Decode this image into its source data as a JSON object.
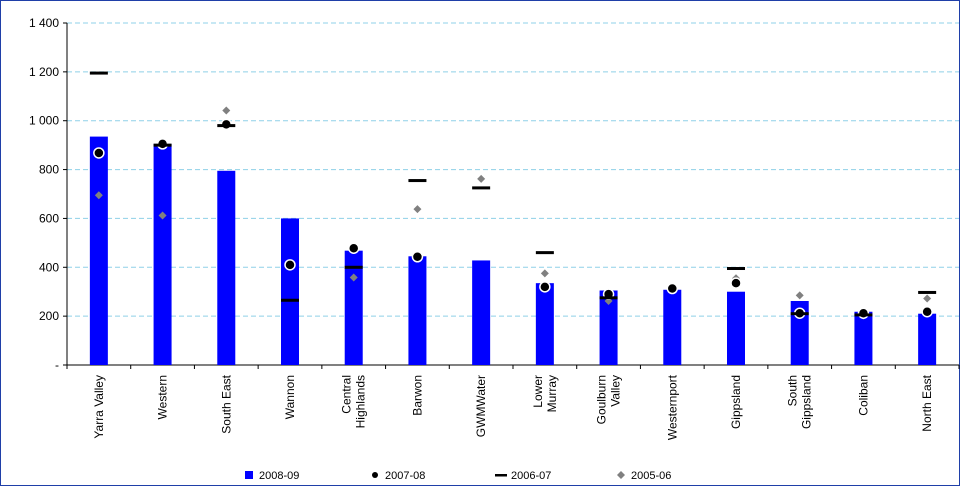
{
  "chart_data": {
    "type": "bar",
    "categories": [
      "Yarra Valley",
      "Western",
      "South East",
      "Wannon",
      "Central Highlands",
      "Barwon",
      "GWMWater",
      "Lower Murray",
      "Goulburn Valley",
      "Westernport",
      "Gippsland",
      "South Gippsland",
      "Coliban",
      "North East"
    ],
    "category_lines": [
      [
        "Yarra Valley"
      ],
      [
        "Western"
      ],
      [
        "South East"
      ],
      [
        "Wannon"
      ],
      [
        "Central",
        "Highlands"
      ],
      [
        "Barwon"
      ],
      [
        "GWMWater"
      ],
      [
        "Lower",
        "Murray"
      ],
      [
        "Goulburn",
        "Valley"
      ],
      [
        "Westernport"
      ],
      [
        "Gippsland"
      ],
      [
        "South",
        "Gippsland"
      ],
      [
        "Coliban"
      ],
      [
        "North East"
      ]
    ],
    "series": [
      {
        "name": "2008-09",
        "style": "bar",
        "color": "#0000ff",
        "values": [
          935,
          905,
          795,
          600,
          468,
          445,
          428,
          335,
          305,
          308,
          300,
          262,
          218,
          210
        ]
      },
      {
        "name": "2007-08",
        "style": "circle",
        "color": "#000000",
        "values": [
          868,
          905,
          985,
          410,
          478,
          443,
          null,
          320,
          290,
          313,
          335,
          212,
          212,
          218
        ]
      },
      {
        "name": "2006-07",
        "style": "dash",
        "color": "#000000",
        "values": [
          1195,
          900,
          980,
          265,
          400,
          755,
          725,
          460,
          275,
          null,
          395,
          210,
          205,
          297
        ]
      },
      {
        "name": "2005-06",
        "style": "diamond",
        "color": "#808080",
        "values": [
          695,
          612,
          1042,
          null,
          358,
          638,
          762,
          375,
          262,
          null,
          355,
          285,
          202,
          272
        ]
      }
    ],
    "ylim": [
      0,
      1400
    ],
    "yticks": [
      0,
      200,
      400,
      600,
      800,
      1000,
      1200,
      1400
    ],
    "ytick_labels": [
      "-",
      "200",
      "400",
      "600",
      "800",
      "1 000",
      "1 200",
      "1 400"
    ],
    "grid": true,
    "legend_position": "bottom"
  }
}
